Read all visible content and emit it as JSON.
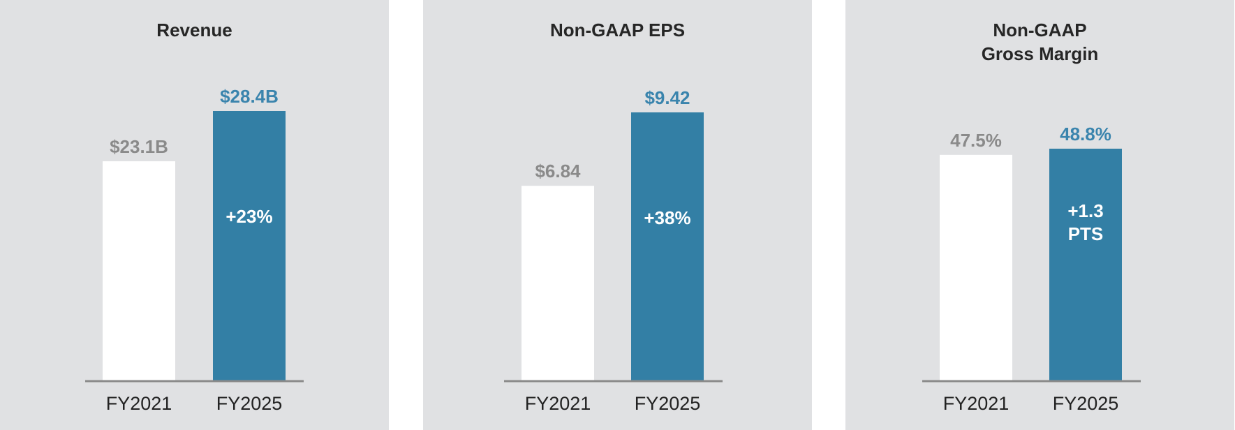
{
  "colors": {
    "panel_bg": "#e0e1e3",
    "bar_fy2021": "#ffffff",
    "bar_fy2025": "#337fa5",
    "label_fy2021": "#8a8a8a",
    "label_fy2025": "#3a84ad",
    "growth_text": "#ffffff",
    "baseline": "#8a8a8a",
    "category_text": "#222222"
  },
  "chart_data": [
    {
      "type": "bar",
      "title": "Revenue",
      "categories": [
        "FY2021",
        "FY2025"
      ],
      "values": [
        23.1,
        28.4
      ],
      "value_labels": [
        "$23.1B",
        "$28.4B"
      ],
      "unit": "$B",
      "growth_label": "+23%",
      "ylim": [
        0,
        28.4
      ],
      "grid": false
    },
    {
      "type": "bar",
      "title": "Non-GAAP EPS",
      "categories": [
        "FY2021",
        "FY2025"
      ],
      "values": [
        6.84,
        9.42
      ],
      "value_labels": [
        "$6.84",
        "$9.42"
      ],
      "unit": "$",
      "growth_label": "+38%",
      "ylim": [
        0,
        9.42
      ],
      "grid": false
    },
    {
      "type": "bar",
      "title": "Non-GAAP\nGross Margin",
      "categories": [
        "FY2021",
        "FY2025"
      ],
      "values": [
        47.5,
        48.8
      ],
      "value_labels": [
        "47.5%",
        "48.8%"
      ],
      "unit": "%",
      "growth_label": "+1.3\nPTS",
      "ylim": [
        0,
        48.8
      ],
      "grid": false
    }
  ]
}
